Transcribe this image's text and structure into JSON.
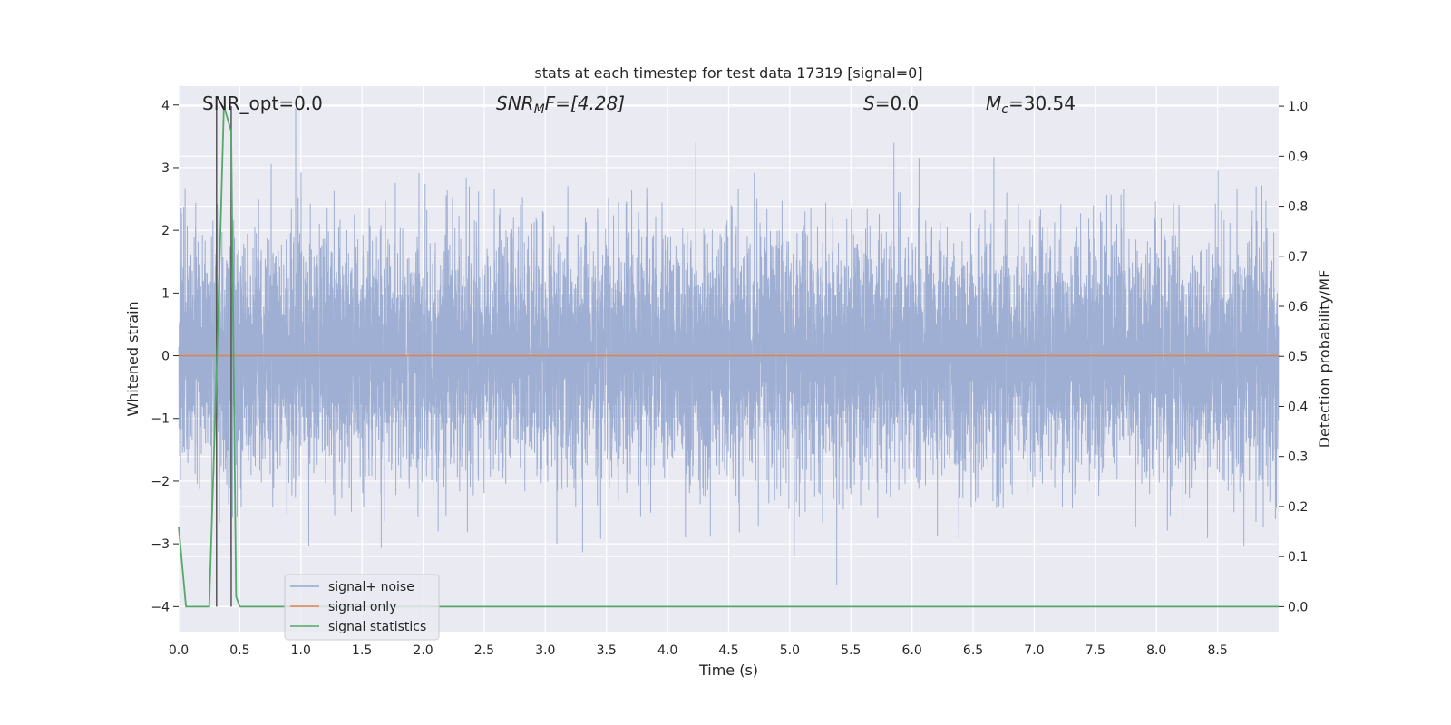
{
  "chart_data": {
    "type": "line",
    "title": "stats at each timestep for test data 17319 [signal=0]",
    "xlabel": "Time (s)",
    "ylabel": "Whitened strain",
    "y2label": "Detection probability/MF",
    "xlim": [
      0,
      9.0
    ],
    "ylim": [
      -4.4,
      4.3
    ],
    "y2lim": [
      -0.05,
      1.04
    ],
    "xticks": [
      "0.0",
      "0.5",
      "1.0",
      "1.5",
      "2.0",
      "2.5",
      "3.0",
      "3.5",
      "4.0",
      "4.5",
      "5.0",
      "5.5",
      "6.0",
      "6.5",
      "7.0",
      "7.5",
      "8.0",
      "8.5"
    ],
    "yticks": [
      "4",
      "3",
      "2",
      "1",
      "0",
      "−1",
      "−2",
      "−3",
      "−4"
    ],
    "y2ticks": [
      "1.0",
      "0.9",
      "0.8",
      "0.7",
      "0.6",
      "0.5",
      "0.4",
      "0.3",
      "0.2",
      "0.1",
      "0.0"
    ],
    "grid": true,
    "legend_position": "lower-left",
    "annotations": {
      "snr_opt": "SNR_opt=0.0",
      "snr_mf_main": "SNR",
      "snr_mf_sub": "M",
      "snr_mf_rest": "F=[4.28]",
      "s_italic": "S",
      "s_rest": "=0.0",
      "mc_main": "M",
      "mc_sub": "c",
      "mc_rest": "=30.54"
    },
    "series": [
      {
        "name": "signal+ noise",
        "color": "#97a8cf",
        "description_kind": "whitened strain noise, roughly unit variance, about 8192 samples over 0-9 s",
        "sample_rate_hz": 1024,
        "std": 0.95,
        "peak_max": 3.95,
        "peak_min": -4.0
      },
      {
        "name": "signal only",
        "color": "#dd8452",
        "x": [
          0,
          9.0
        ],
        "y": [
          0,
          0
        ]
      },
      {
        "name": "signal statistics",
        "color": "#55a868",
        "axis": "y2",
        "x": [
          0.0,
          0.06,
          0.12,
          0.25,
          0.32,
          0.37,
          0.43,
          0.47,
          0.5,
          9.0
        ],
        "y": [
          0.16,
          0.0,
          0.0,
          0.0,
          0.55,
          1.0,
          0.95,
          0.02,
          0.0,
          0.0
        ]
      }
    ],
    "vlines": [
      0.31,
      0.43
    ]
  },
  "legend": {
    "items": [
      {
        "label": "signal+ noise",
        "color": "#97a8cf"
      },
      {
        "label": "signal only",
        "color": "#dd8452"
      },
      {
        "label": "signal statistics",
        "color": "#55a868"
      }
    ]
  }
}
